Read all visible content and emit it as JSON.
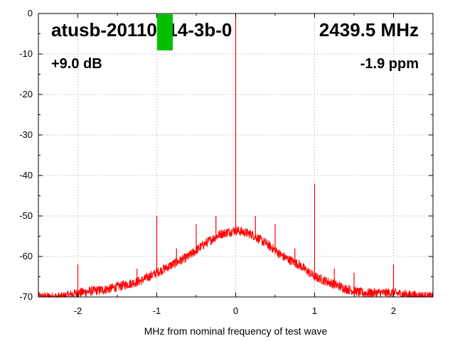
{
  "chart_data": {
    "type": "line",
    "title": "",
    "xlabel": "MHz from nominal frequency of test wave",
    "ylabel": "",
    "xlim": [
      -2.5,
      2.5
    ],
    "ylim": [
      -70,
      0
    ],
    "grid": true,
    "x_ticks": [
      -2,
      -1,
      0,
      1,
      2
    ],
    "y_ticks": [
      0,
      -10,
      -20,
      -30,
      -40,
      -50,
      -60,
      -70
    ],
    "series_color": "#ff0000",
    "noise_floor_db": -70,
    "envelope": {
      "x": [
        -2.5,
        -2.2,
        -2.0,
        -1.6,
        -1.2,
        -1.0,
        -0.8,
        -0.6,
        -0.4,
        -0.2,
        -0.1,
        0.0,
        0.1,
        0.2,
        0.4,
        0.6,
        0.8,
        1.0,
        1.2,
        1.4,
        1.6,
        1.8,
        2.0,
        2.2,
        2.5
      ],
      "y": [
        -70,
        -70,
        -69,
        -68,
        -66,
        -64,
        -62,
        -60,
        -57,
        -54.5,
        -54,
        -53.5,
        -54,
        -54.5,
        -57,
        -60,
        -62,
        -65,
        -66.5,
        -68,
        -69,
        -69,
        -69,
        -69.5,
        -70
      ]
    },
    "peaks": [
      {
        "x": 0.0,
        "y": 0
      },
      {
        "x": -2.0,
        "y": -62
      },
      {
        "x": -1.25,
        "y": -63
      },
      {
        "x": -1.0,
        "y": -50
      },
      {
        "x": -0.75,
        "y": -58
      },
      {
        "x": -0.5,
        "y": -52
      },
      {
        "x": -0.25,
        "y": -50
      },
      {
        "x": 0.25,
        "y": -50
      },
      {
        "x": 0.5,
        "y": -52
      },
      {
        "x": 0.75,
        "y": -58
      },
      {
        "x": 1.0,
        "y": -42
      },
      {
        "x": 1.25,
        "y": -63
      },
      {
        "x": 1.5,
        "y": -64
      },
      {
        "x": 2.0,
        "y": -62
      }
    ],
    "annotations": {
      "device": "atusb-20110214-3b-0",
      "frequency": "2439.5 MHz",
      "gain": "+9.0 dB",
      "offset": "-1.9 ppm"
    },
    "marker_color": "#00c000"
  }
}
